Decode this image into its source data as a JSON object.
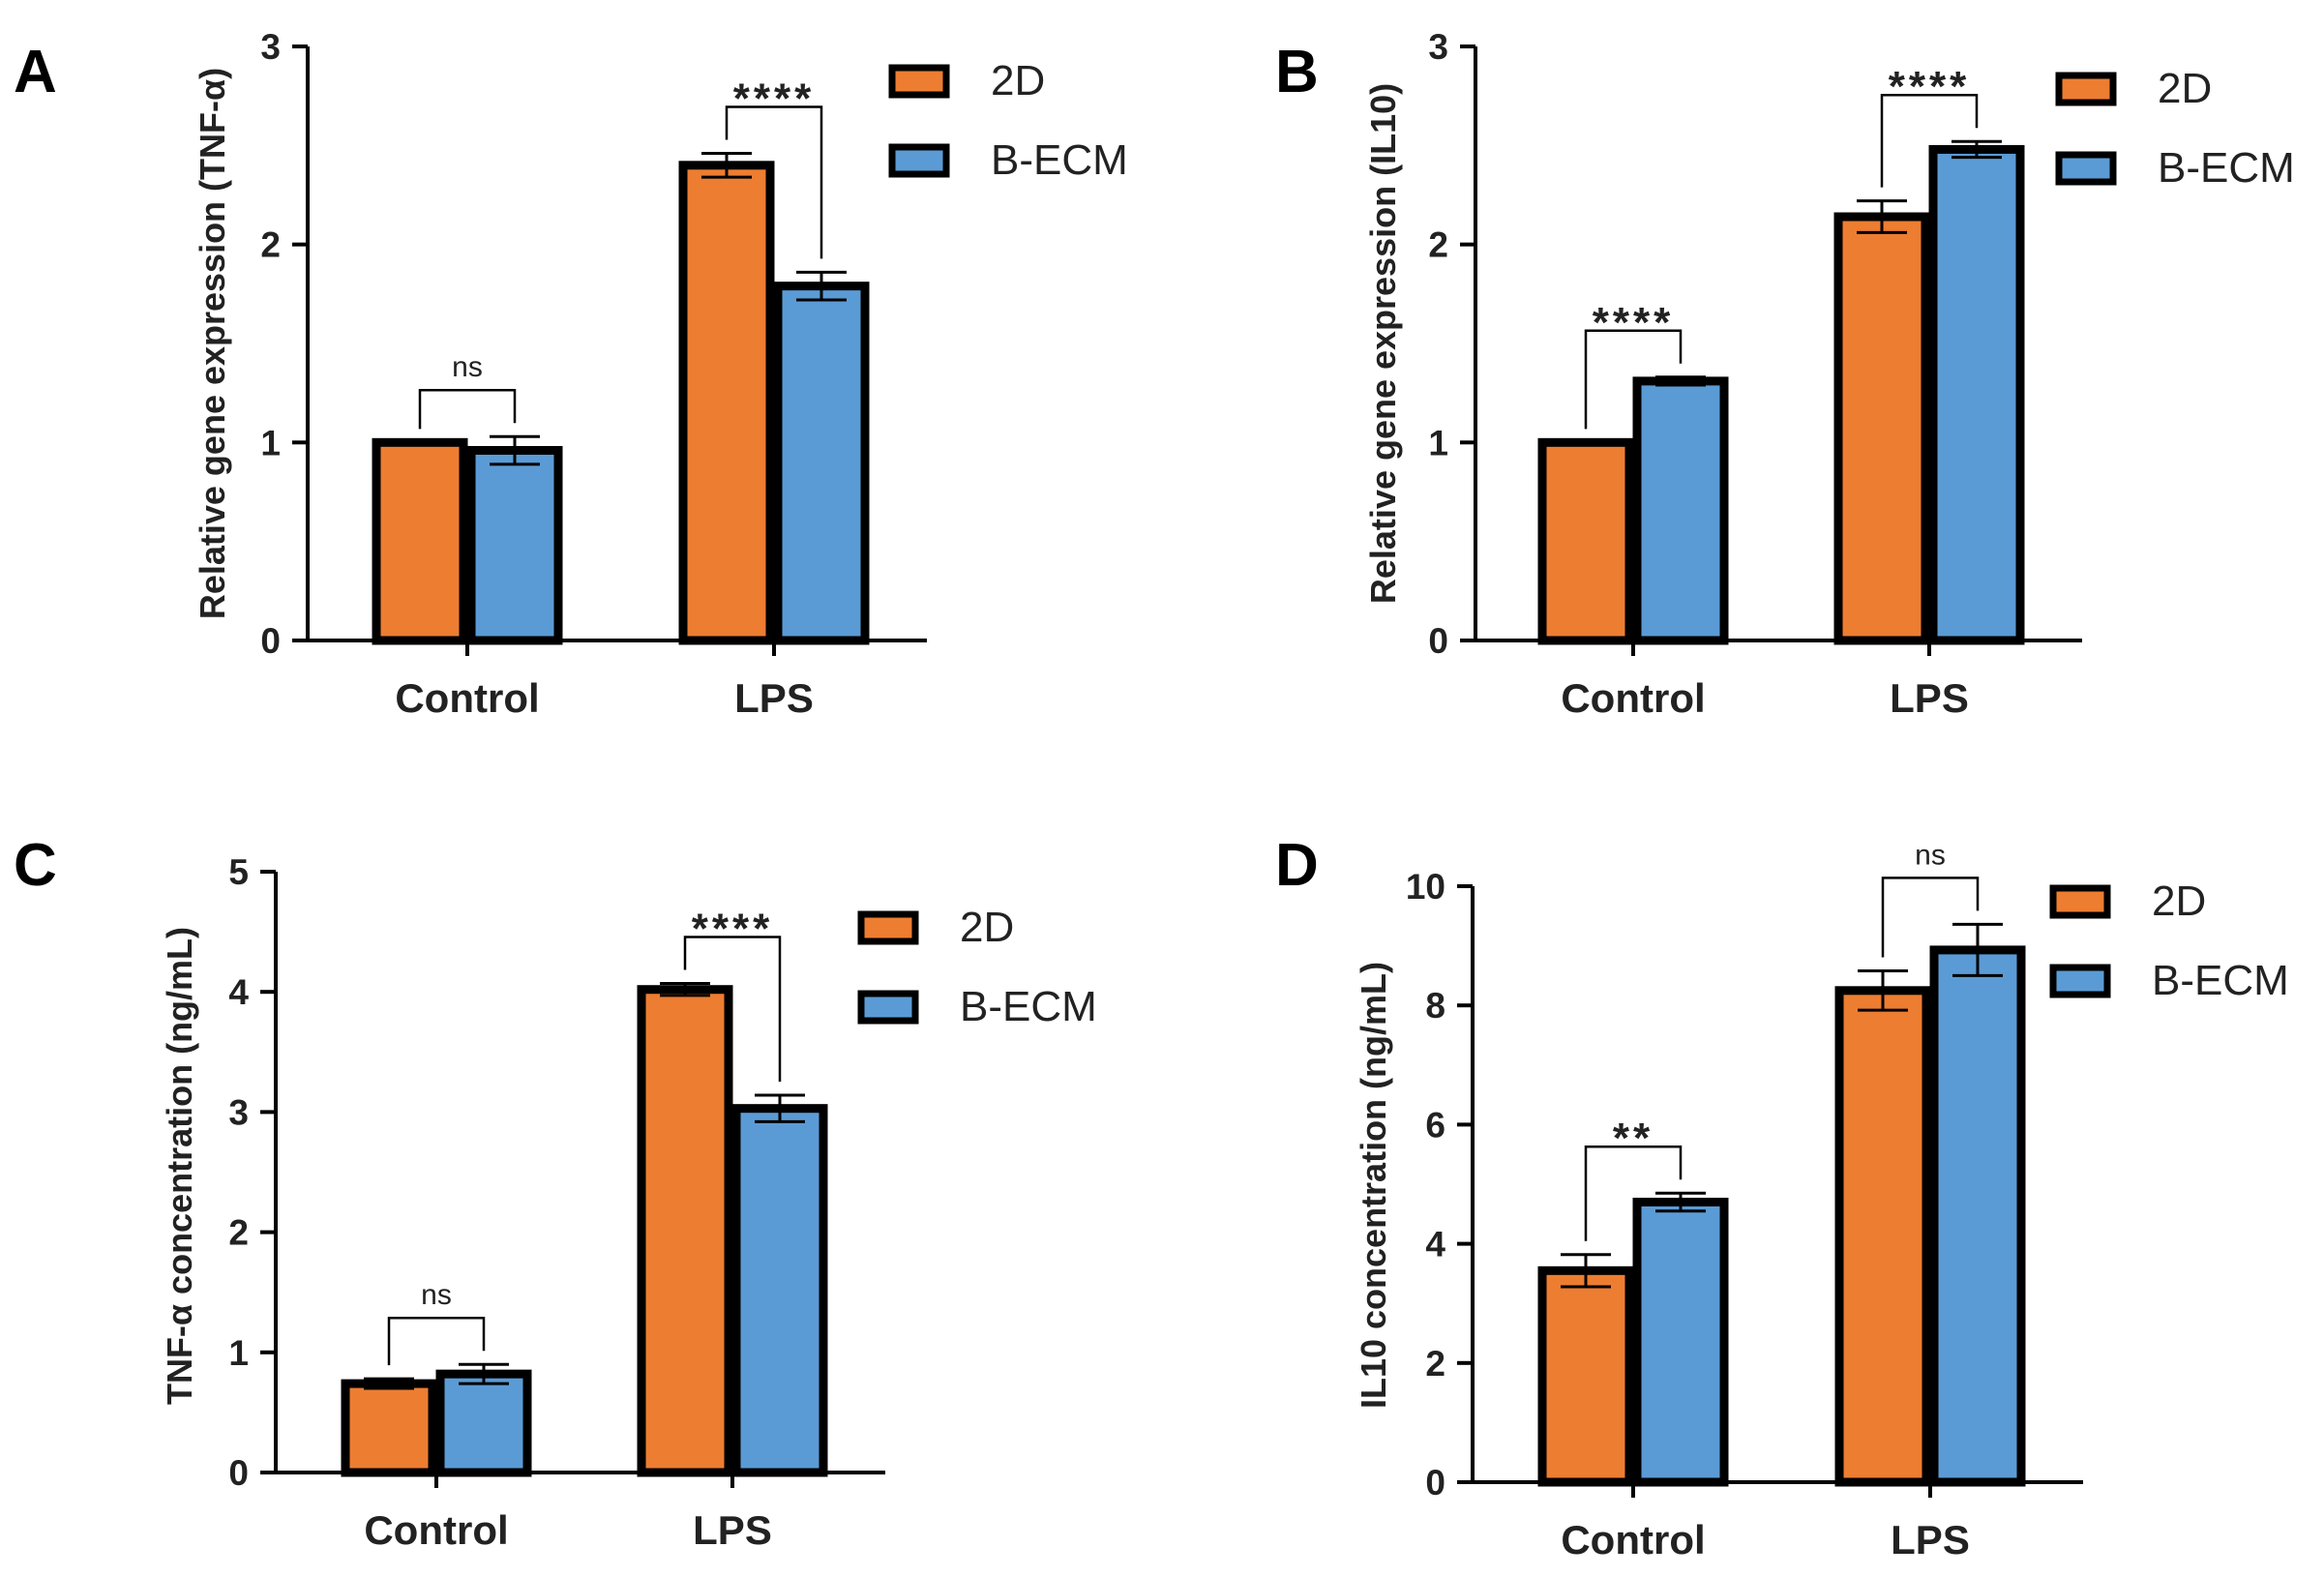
{
  "colors": {
    "2D": "#ED7D31",
    "B-ECM": "#5B9BD5",
    "outline": "#000000"
  },
  "chart_data": [
    {
      "type": "bar",
      "panel_label": "A",
      "title": "",
      "xlabel": "",
      "ylabel": "Relative gene expression (TNF-α)",
      "ylim": [
        0,
        3
      ],
      "yticks": [
        "0",
        "1",
        "2",
        "3"
      ],
      "categories": [
        "Control",
        "LPS"
      ],
      "series": [
        {
          "name": "2D",
          "values": [
            1.0,
            2.4
          ],
          "errors": [
            0.0,
            0.06
          ]
        },
        {
          "name": "B-ECM",
          "values": [
            0.96,
            1.79
          ],
          "errors": [
            0.07,
            0.07
          ]
        }
      ],
      "significance": [
        "ns",
        "****"
      ],
      "legend": "top-right"
    },
    {
      "type": "bar",
      "panel_label": "B",
      "title": "",
      "xlabel": "",
      "ylabel": "Relative gene expression (IL10)",
      "ylim": [
        0,
        3
      ],
      "yticks": [
        "0",
        "1",
        "2",
        "3"
      ],
      "categories": [
        "Control",
        "LPS"
      ],
      "series": [
        {
          "name": "2D",
          "values": [
            1.0,
            2.14
          ],
          "errors": [
            0.0,
            0.08
          ]
        },
        {
          "name": "B-ECM",
          "values": [
            1.31,
            2.48
          ],
          "errors": [
            0.02,
            0.04
          ]
        }
      ],
      "significance": [
        "****",
        "****"
      ],
      "legend": "top-right"
    },
    {
      "type": "bar",
      "panel_label": "C",
      "title": "",
      "xlabel": "",
      "ylabel": "TNF-α concentration (ng/mL)",
      "ylim": [
        0,
        5
      ],
      "yticks": [
        "0",
        "1",
        "2",
        "3",
        "4",
        "5"
      ],
      "categories": [
        "Control",
        "LPS"
      ],
      "series": [
        {
          "name": "2D",
          "values": [
            0.74,
            4.02
          ],
          "errors": [
            0.04,
            0.05
          ]
        },
        {
          "name": "B-ECM",
          "values": [
            0.82,
            3.03
          ],
          "errors": [
            0.08,
            0.11
          ]
        }
      ],
      "significance": [
        "ns",
        "****"
      ],
      "legend": "top-right"
    },
    {
      "type": "bar",
      "panel_label": "D",
      "title": "",
      "xlabel": "",
      "ylabel": "IL10 concentration (ng/mL)",
      "ylim": [
        0,
        10
      ],
      "yticks": [
        "0",
        "2",
        "4",
        "6",
        "8",
        "10"
      ],
      "categories": [
        "Control",
        "LPS"
      ],
      "series": [
        {
          "name": "2D",
          "values": [
            3.55,
            8.25
          ],
          "errors": [
            0.27,
            0.33
          ]
        },
        {
          "name": "B-ECM",
          "values": [
            4.7,
            8.93
          ],
          "errors": [
            0.15,
            0.43
          ]
        }
      ],
      "significance": [
        "**",
        "ns"
      ],
      "legend": "top-right"
    }
  ]
}
